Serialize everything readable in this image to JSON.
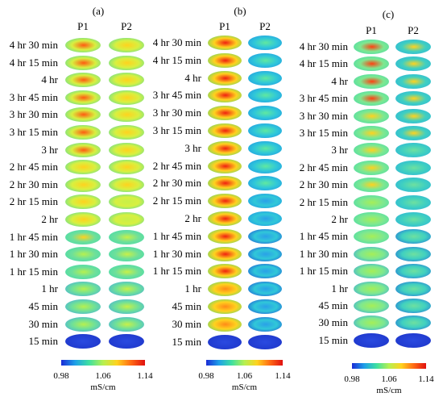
{
  "panels": [
    {
      "label": "(a)",
      "cols": [
        "P1",
        "P2"
      ]
    },
    {
      "label": "(b)",
      "cols": [
        "P1",
        "P2"
      ]
    },
    {
      "label": "(c)",
      "cols": [
        "P1",
        "P2"
      ]
    }
  ],
  "rows": [
    "4 hr 30 min",
    "4 hr 15 min",
    "4 hr",
    "3 hr 45 min",
    "3 hr 30 min",
    "3 hr 15 min",
    "3 hr",
    "2 hr 45 min",
    "2 hr 30 min",
    "2 hr 15 min",
    "2 hr",
    "1 hr 45 min",
    "1 hr 30 min",
    "1 hr 15 min",
    "1 hr",
    "45 min",
    "30 min",
    "15 min"
  ],
  "colorbar": {
    "ticks": [
      "0.98",
      "1.06",
      "1.14"
    ],
    "unit": "mS/cm",
    "colors": [
      "#1a2bd6",
      "#1ea0e8",
      "#3fe0a0",
      "#b6f050",
      "#ffd21e",
      "#ff6a14",
      "#e01010"
    ]
  }
}
